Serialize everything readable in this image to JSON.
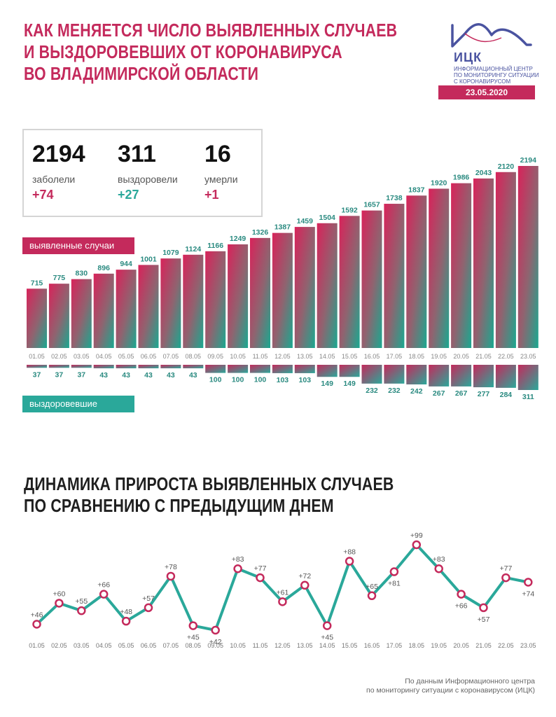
{
  "title_lines": [
    "Как меняется число выявленных случаев",
    "и выздоровевших от коронавируса",
    "во Владимирской области"
  ],
  "logo": {
    "name": "ИЦК",
    "subtitle_lines": [
      "Информационный центр",
      "по мониторингу ситуации",
      "с коронавирусом"
    ]
  },
  "date": "23.05.2020",
  "stats": {
    "infected": {
      "value": "2194",
      "label": "заболели",
      "delta": "+74"
    },
    "recovered": {
      "value": "311",
      "label": "выздоровели",
      "delta": "+27"
    },
    "died": {
      "value": "16",
      "label": "умерли",
      "delta": "+1"
    }
  },
  "labels": {
    "cases": "выявленные случаи",
    "recovered": "выздоровевшие"
  },
  "section2_title_lines": [
    "Динамика прироста выявленных случаев",
    "по сравнению с предыдущим днем"
  ],
  "source_lines": [
    "По данным Информационного центра",
    "по мониторингу ситуации с коронавирусом (ИЦК)"
  ],
  "colors": {
    "accent": "#c42a5c",
    "teal": "#2aa89a",
    "logo": "#4a53a0"
  },
  "chart_data": [
    {
      "type": "bar",
      "categories": [
        "01.05",
        "02.05",
        "03.05",
        "04.05",
        "05.05",
        "06.05",
        "07.05",
        "08.05",
        "09.05",
        "10.05",
        "11.05",
        "12.05",
        "13.05",
        "14.05",
        "15.05",
        "16.05",
        "17.05",
        "18.05",
        "19.05",
        "20.05",
        "21.05",
        "22.05",
        "23.05"
      ],
      "series": [
        {
          "name": "выявленные случаи",
          "values": [
            715,
            775,
            830,
            896,
            944,
            1001,
            1079,
            1124,
            1166,
            1249,
            1326,
            1387,
            1459,
            1504,
            1592,
            1657,
            1738,
            1837,
            1920,
            1986,
            2043,
            2120,
            2194
          ]
        },
        {
          "name": "выздоровевшие",
          "values": [
            37,
            37,
            37,
            43,
            43,
            43,
            43,
            43,
            100,
            100,
            100,
            103,
            103,
            149,
            149,
            232,
            232,
            242,
            267,
            267,
            277,
            284,
            311
          ]
        }
      ]
    },
    {
      "type": "line",
      "categories": [
        "01.05",
        "02.05",
        "03.05",
        "04.05",
        "05.05",
        "06.05",
        "07.05",
        "08.05",
        "09.05",
        "10.05",
        "11.05",
        "12.05",
        "13.05",
        "14.05",
        "15.05",
        "16.05",
        "17.05",
        "18.05",
        "19.05",
        "20.05",
        "21.05",
        "22.05",
        "23.05"
      ],
      "values": [
        46,
        60,
        55,
        66,
        48,
        57,
        78,
        45,
        42,
        83,
        77,
        61,
        72,
        45,
        88,
        65,
        81,
        99,
        83,
        66,
        57,
        77,
        74
      ],
      "labels": [
        "+46",
        "+60",
        "+55",
        "+66",
        "+48",
        "+57",
        "+78",
        "+45",
        "+42",
        "+83",
        "+77",
        "+61",
        "+72",
        "+45",
        "+88",
        "+65",
        "+81",
        "+99",
        "+83",
        "+66",
        "+57",
        "+77",
        "+74"
      ]
    }
  ]
}
